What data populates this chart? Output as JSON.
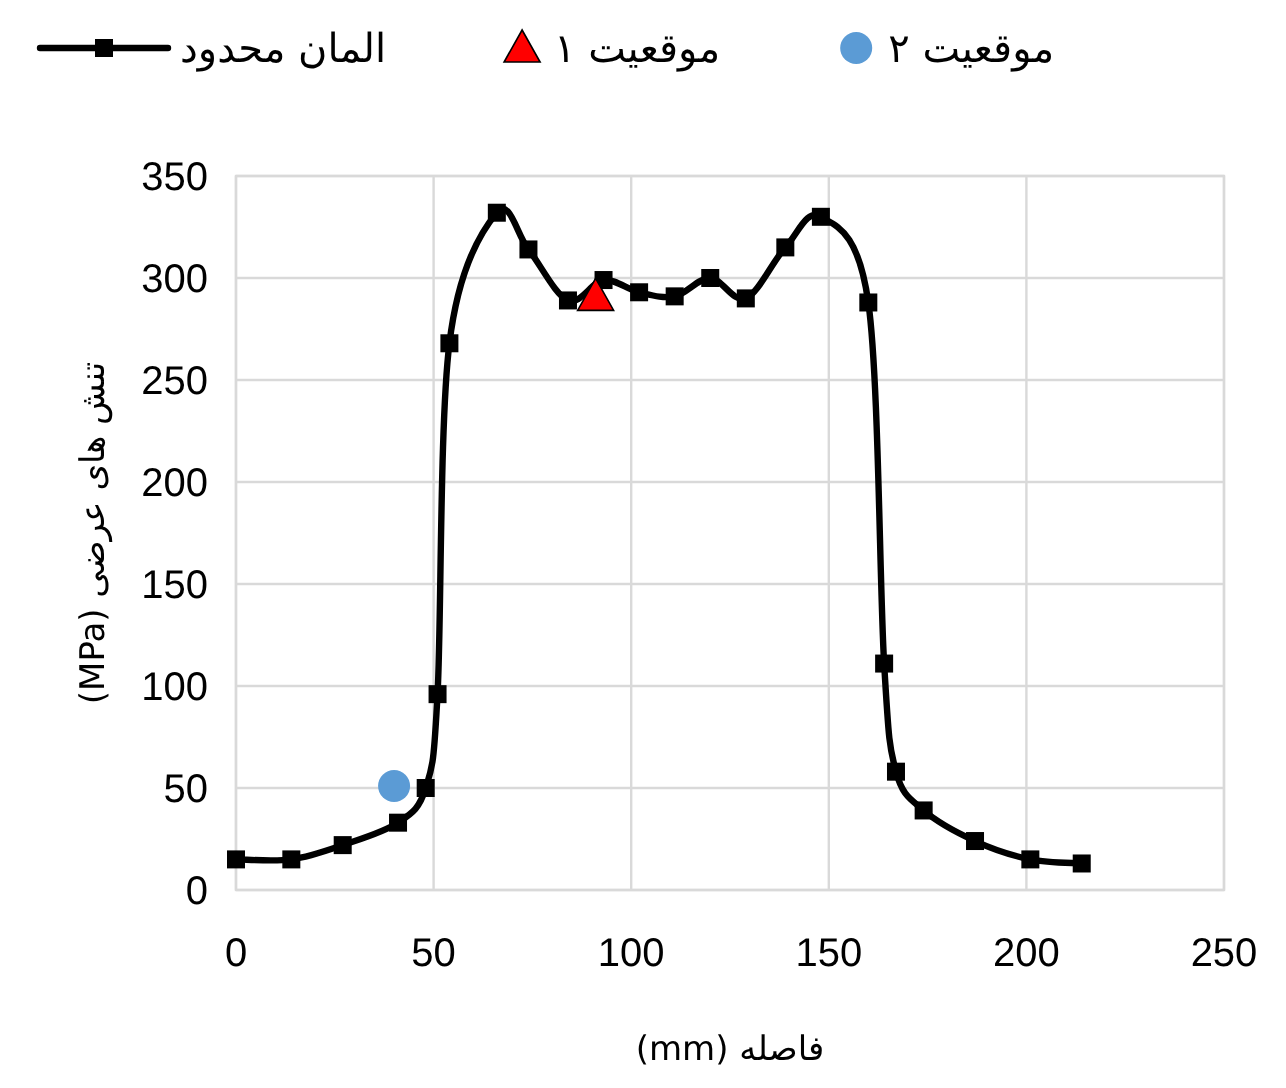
{
  "chart_data": {
    "type": "line",
    "xlabel": "فاصله (mm)",
    "ylabel": "تنش های عرضی (MPa)",
    "xlim": [
      0,
      250
    ],
    "xticks": [
      0,
      50,
      100,
      150,
      200,
      250
    ],
    "ylim": [
      0,
      350
    ],
    "yticks": [
      0,
      50,
      100,
      150,
      200,
      250,
      300,
      350
    ],
    "grid": true,
    "legend": "top",
    "line_style": "solid",
    "series": [
      {
        "name": "المان محدود",
        "color": "#000000",
        "marker": "square",
        "x": [
          0,
          14,
          27,
          41,
          48,
          51,
          54,
          66,
          74,
          84,
          93,
          102,
          111,
          120,
          129,
          139,
          148,
          160,
          164,
          167,
          174,
          187,
          201,
          214
        ],
        "values": [
          15,
          15,
          22,
          33,
          50,
          96,
          268,
          332,
          314,
          289,
          299,
          293,
          291,
          300,
          290,
          315,
          330,
          288,
          111,
          58,
          39,
          24,
          15,
          13
        ]
      },
      {
        "name": "موقعیت ۱",
        "type": "scatter",
        "color": "#ff0000",
        "marker": "triangle",
        "x": [
          91
        ],
        "values": [
          291
        ]
      },
      {
        "name": "موقعیت ۲",
        "type": "scatter",
        "color": "#5b9bd5",
        "marker": "circle",
        "x": [
          40
        ],
        "values": [
          51
        ]
      }
    ]
  }
}
